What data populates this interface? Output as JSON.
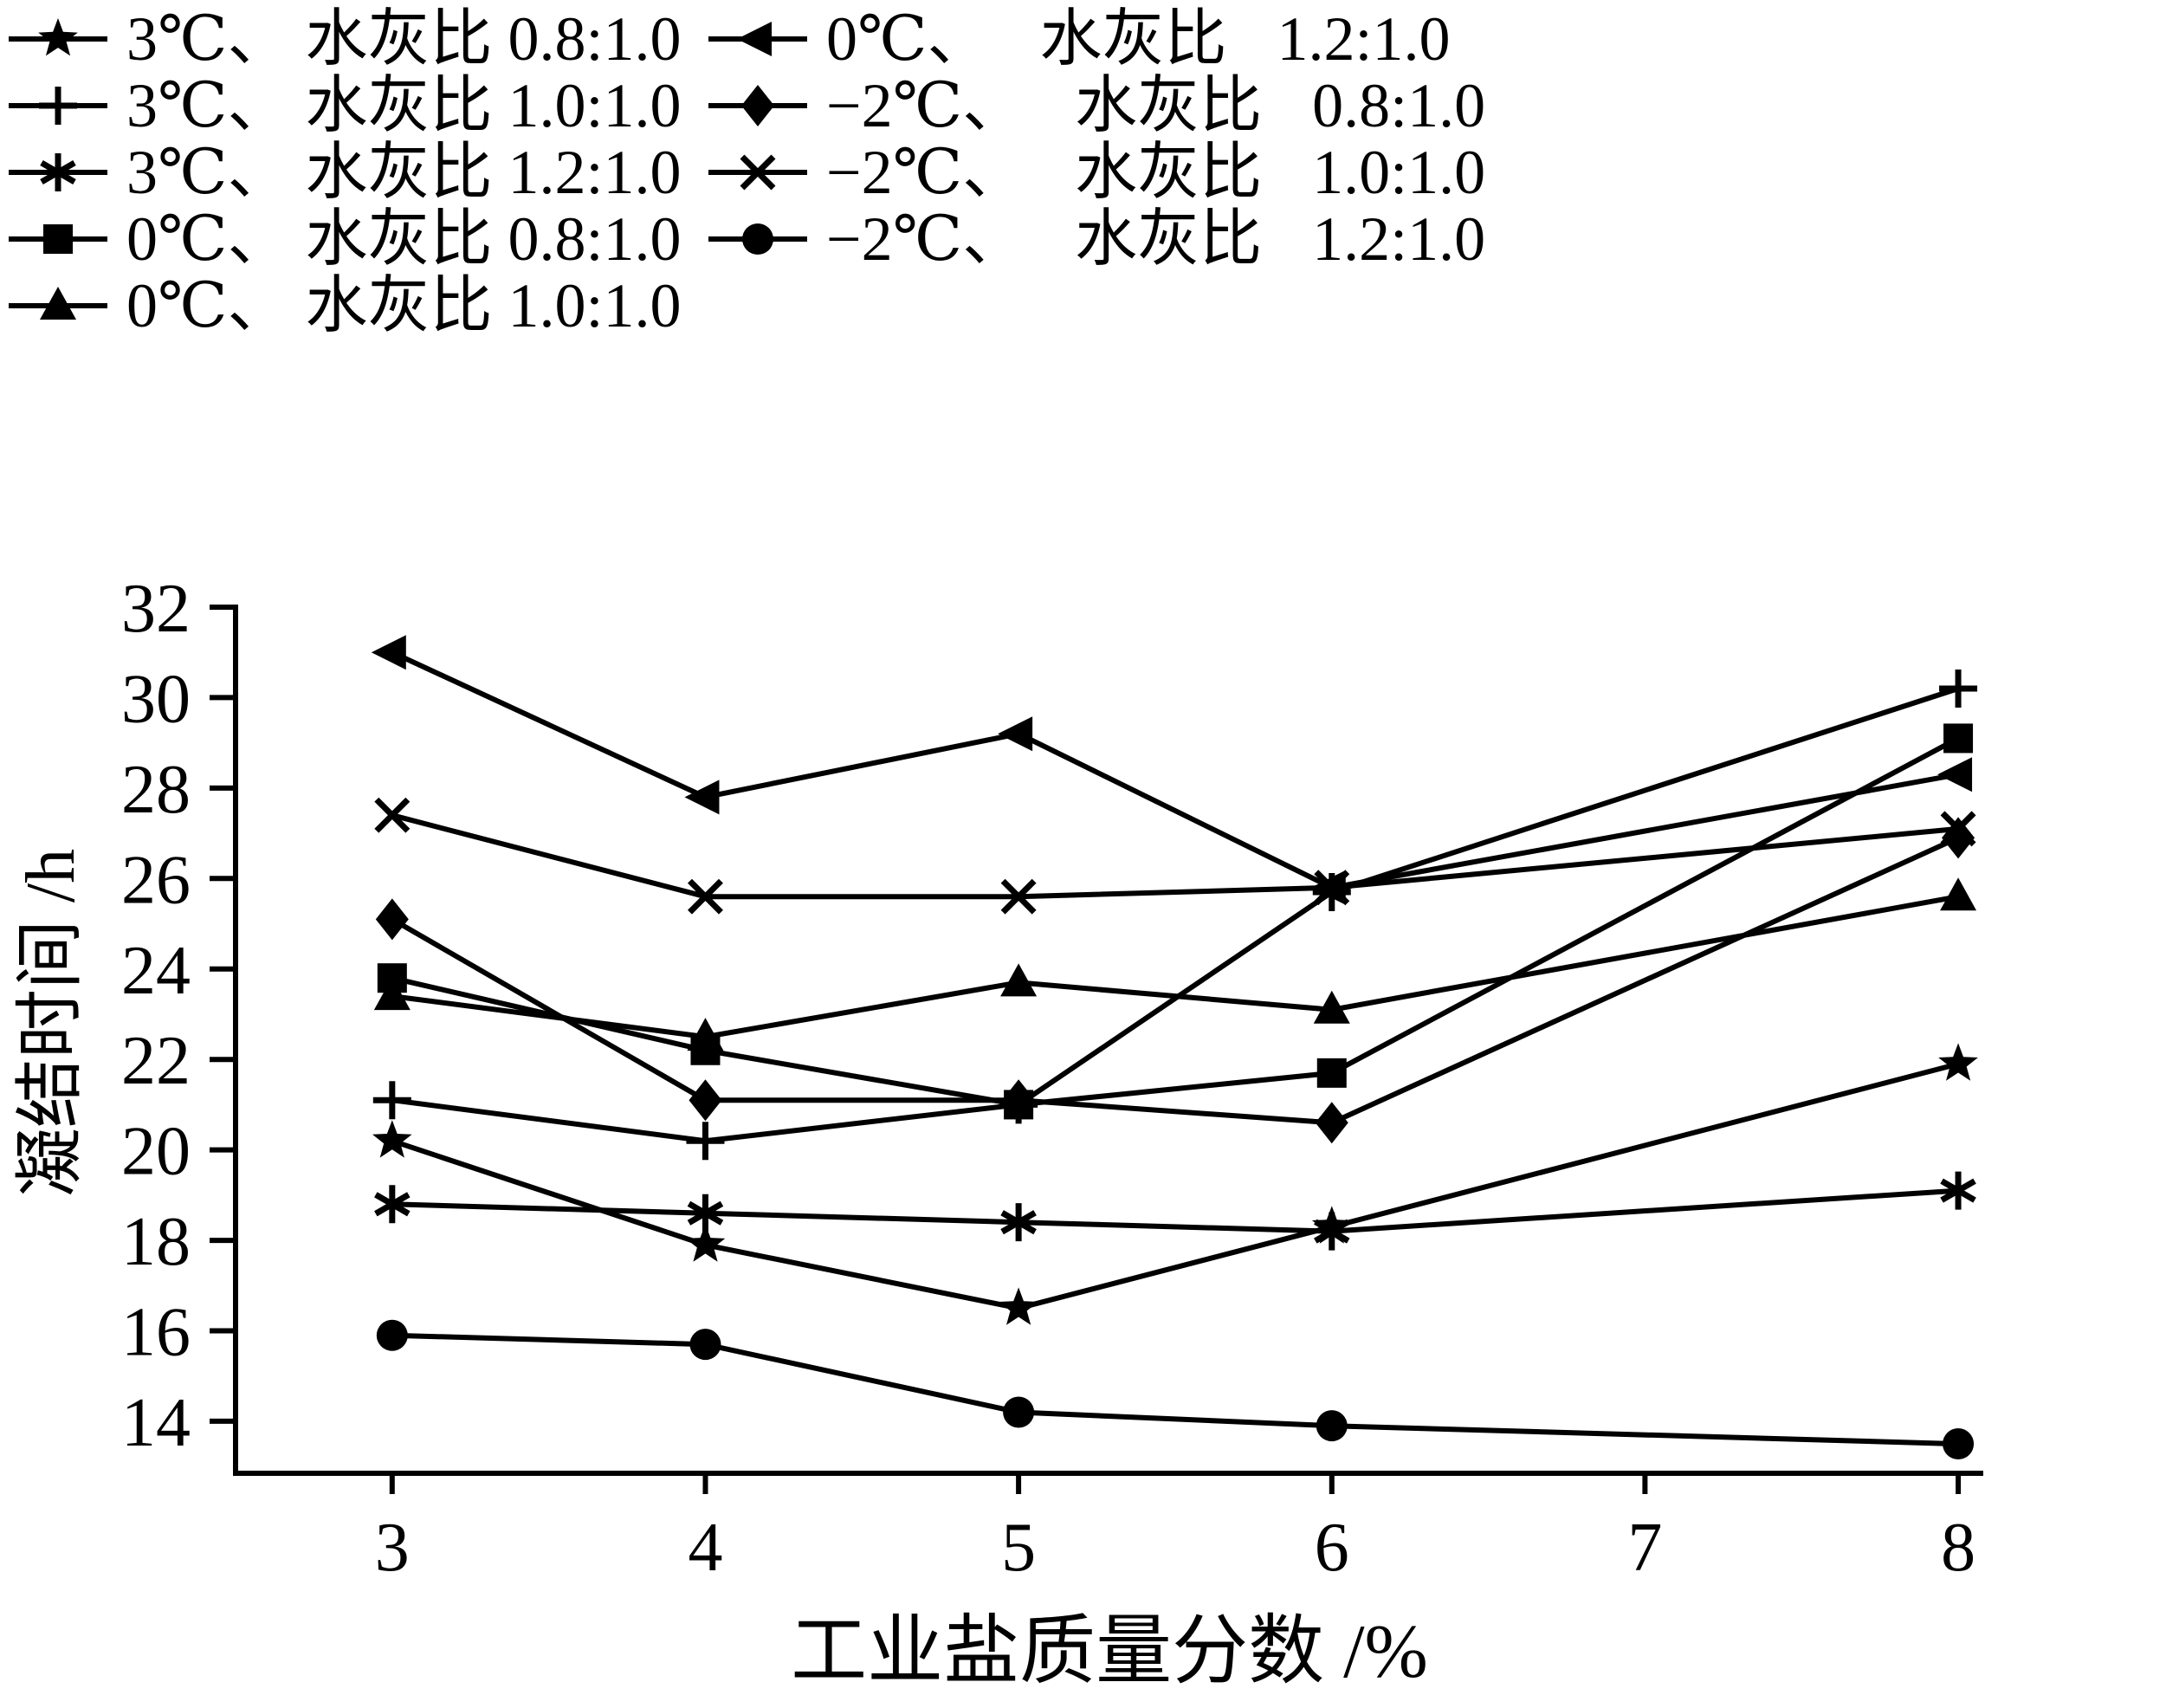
{
  "legend": {
    "items": [
      {
        "label": "3℃、 水灰比 0.8:1.0",
        "marker": "star"
      },
      {
        "label": "3℃、 水灰比 1.0:1.0",
        "marker": "plus"
      },
      {
        "label": "3℃、 水灰比 1.2:1.0",
        "marker": "asterisk"
      },
      {
        "label": "0℃、 水灰比 0.8:1.0",
        "marker": "square"
      },
      {
        "label": "0℃、 水灰比 1.0:1.0",
        "marker": "triangle-up"
      },
      {
        "label": "0℃、 水灰比 1.2:1.0",
        "marker": "triangle-left"
      },
      {
        "label": "−2℃、 水灰比 0.8:1.0",
        "marker": "diamond"
      },
      {
        "label": "−2℃、 水灰比 1.0:1.0",
        "marker": "x"
      },
      {
        "label": "−2℃、 水灰比 1.2:1.0",
        "marker": "circle"
      }
    ]
  },
  "chart_data": {
    "type": "line",
    "title": "",
    "xlabel": "工业盐质量分数 /%",
    "ylabel": "凝结时间 /h",
    "x": [
      3,
      4,
      5,
      6,
      8
    ],
    "x_ticks": [
      3,
      4,
      5,
      6,
      7,
      8
    ],
    "y_ticks": [
      14,
      16,
      18,
      20,
      22,
      24,
      26,
      28,
      30,
      32
    ],
    "xlim": [
      2.5,
      8.08
    ],
    "ylim": [
      12.85,
      32
    ],
    "grid": false,
    "line_color": "#000000",
    "legend_position": "top",
    "series": [
      {
        "name": "3℃、水灰比 0.8:1.0",
        "marker": "star",
        "values": [
          20.2,
          17.9,
          16.5,
          18.3,
          21.9
        ]
      },
      {
        "name": "3℃、水灰比 1.0:1.0",
        "marker": "plus",
        "values": [
          21.1,
          20.2,
          21.0,
          25.7,
          30.2
        ]
      },
      {
        "name": "3℃、水灰比 1.2:1.0",
        "marker": "asterisk",
        "values": [
          18.8,
          18.6,
          18.4,
          18.2,
          19.1
        ]
      },
      {
        "name": "0℃、水灰比 0.8:1.0",
        "marker": "square",
        "values": [
          23.8,
          22.2,
          21.0,
          21.7,
          29.1
        ]
      },
      {
        "name": "0℃、水灰比 1.0:1.0",
        "marker": "triangle-up",
        "values": [
          23.4,
          22.5,
          23.7,
          23.1,
          25.6
        ]
      },
      {
        "name": "0℃、水灰比 1.2:1.0",
        "marker": "triangle-left",
        "values": [
          31.0,
          27.8,
          29.2,
          25.8,
          28.3
        ]
      },
      {
        "name": "−2℃、水灰比 0.8:1.0",
        "marker": "diamond",
        "values": [
          25.1,
          21.1,
          21.1,
          20.6,
          26.9
        ]
      },
      {
        "name": "−2℃、水灰比 1.0:1.0",
        "marker": "x",
        "values": [
          27.4,
          25.6,
          25.6,
          25.8,
          27.1
        ]
      },
      {
        "name": "−2℃、水灰比 1.2:1.0",
        "marker": "circle",
        "values": [
          15.9,
          15.7,
          14.2,
          13.9,
          13.5
        ]
      }
    ]
  }
}
